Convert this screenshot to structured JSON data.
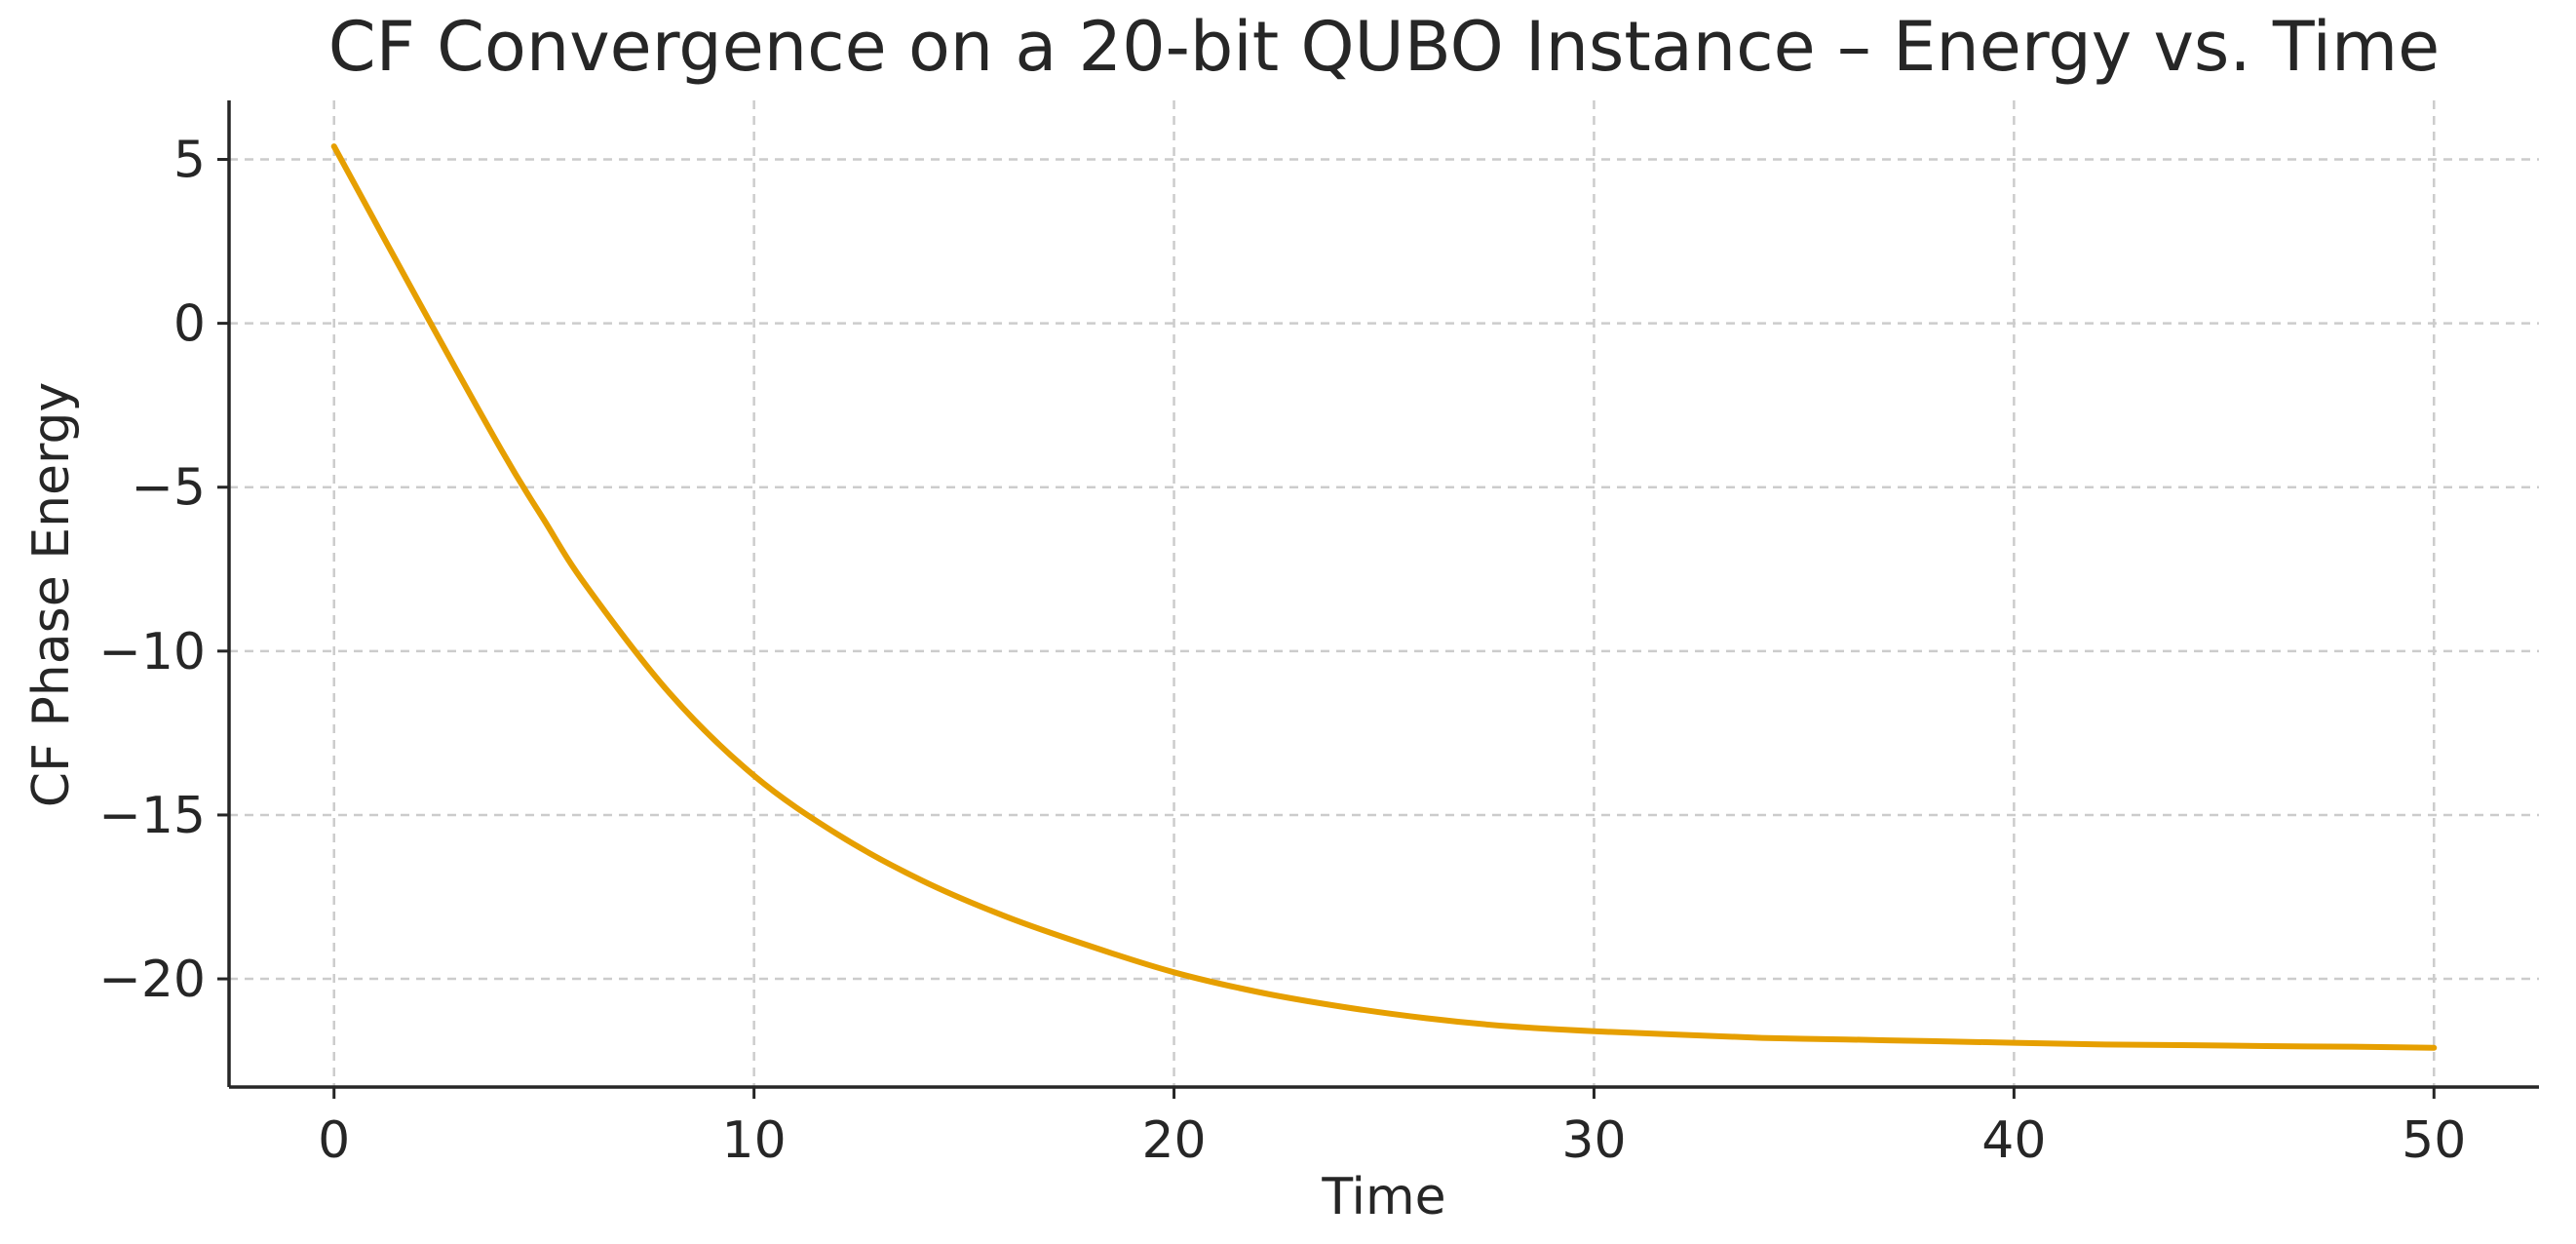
{
  "chart_data": {
    "type": "line",
    "title": "CF Convergence on a 20-bit QUBO Instance – Energy vs. Time",
    "xlabel": "Time",
    "ylabel": "CF Phase Energy",
    "xlim": [
      -2.5,
      52.5
    ],
    "ylim": [
      -23.3,
      6.8
    ],
    "xticks": [
      0,
      10,
      20,
      30,
      40,
      50
    ],
    "yticks": [
      5,
      0,
      -5,
      -10,
      -15,
      -20
    ],
    "xtick_labels": [
      "0",
      "10",
      "20",
      "30",
      "40",
      "50"
    ],
    "ytick_labels": [
      "5",
      "0",
      "−5",
      "−10",
      "−15",
      "−20"
    ],
    "grid": true,
    "series": [
      {
        "color": "#E69F00",
        "x": [
          0,
          2,
          4,
          5,
          6,
          8,
          10,
          12,
          14,
          16,
          18,
          20,
          22,
          24,
          26,
          28,
          30,
          32,
          34,
          36,
          38,
          40,
          42,
          44,
          46,
          48,
          50
        ],
        "y": [
          5.4,
          0.7,
          -3.9,
          -6.0,
          -8.0,
          -11.3,
          -13.8,
          -15.6,
          -17.0,
          -18.1,
          -19.0,
          -19.8,
          -20.4,
          -20.85,
          -21.2,
          -21.45,
          -21.6,
          -21.7,
          -21.8,
          -21.85,
          -21.9,
          -21.95,
          -22.0,
          -22.02,
          -22.05,
          -22.07,
          -22.1
        ]
      }
    ]
  }
}
